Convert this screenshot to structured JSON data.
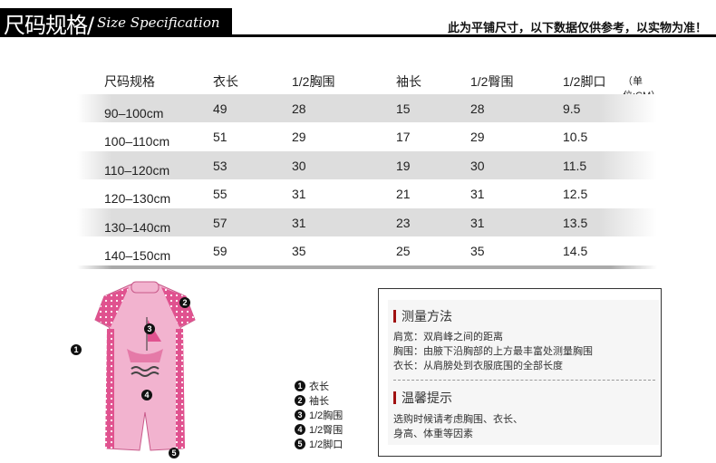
{
  "header": {
    "title_cn": "尺码规格/",
    "title_en": "Size Specification",
    "note": "此为平铺尺寸，以下数据仅供参考，以实物为准！"
  },
  "table": {
    "columns": [
      "尺码规格",
      "衣长",
      "1/2胸围",
      "袖长",
      "1/2臀围",
      "1/2脚口"
    ],
    "unit": "（单位:CM）",
    "rows": [
      [
        "90–100cm",
        "49",
        "28",
        "15",
        "28",
        "9.5"
      ],
      [
        "100–110cm",
        "51",
        "29",
        "17",
        "29",
        "10.5"
      ],
      [
        "110–120cm",
        "53",
        "30",
        "19",
        "30",
        "11.5"
      ],
      [
        "120–130cm",
        "55",
        "31",
        "21",
        "31",
        "12.5"
      ],
      [
        "130–140cm",
        "57",
        "31",
        "23",
        "31",
        "13.5"
      ],
      [
        "140–150cm",
        "59",
        "35",
        "25",
        "35",
        "14.5"
      ]
    ]
  },
  "diagram": {
    "markers": [
      "1",
      "2",
      "3",
      "4",
      "5"
    ],
    "legend": [
      {
        "n": "1",
        "label": "衣长"
      },
      {
        "n": "2",
        "label": "袖长"
      },
      {
        "n": "3",
        "label": "1/2胸围"
      },
      {
        "n": "4",
        "label": "1/2臀围"
      },
      {
        "n": "5",
        "label": "1/2脚口"
      }
    ],
    "colors": {
      "body": "#f2b3cf",
      "side": "#e0528f"
    }
  },
  "info": {
    "measure_title": "测量方法",
    "measure_lines": [
      "肩宽：双肩峰之间的距离",
      "胸围：由腋下沿胸部的上方最丰富处测量胸围",
      "衣长：从肩膀处到衣服底围的全部长度"
    ],
    "tips_title": "温馨提示",
    "tips_lines": [
      "选购时候请考虑胸围、衣长、",
      "身高、体重等因素"
    ],
    "accent": "#a01010"
  }
}
